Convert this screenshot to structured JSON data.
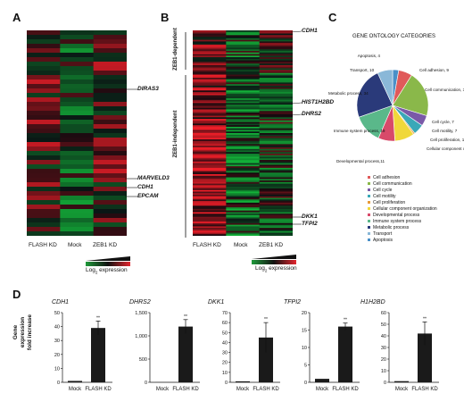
{
  "panels": {
    "a": "A",
    "b": "B",
    "c": "C",
    "d": "D"
  },
  "heatmap_a": {
    "genes": [
      "DIRAS3",
      "MARVELD3",
      "CDH1",
      "EPCAM"
    ],
    "columns": [
      "FLASH KD",
      "Mock",
      "ZEB1 KD"
    ],
    "scale_label_prefix": "Log",
    "scale_label_sub": "2",
    "scale_label_suffix": " expression"
  },
  "heatmap_b": {
    "genes": [
      "CDH1",
      "HIST1H2BD",
      "DHRS2",
      "DKK1",
      "TFPI2"
    ],
    "columns": [
      "FLASH KD",
      "Mock",
      "ZEB1 KD"
    ],
    "groups": [
      "ZEB1-dependent",
      "ZEB1-independent"
    ],
    "scale_label_prefix": "Log",
    "scale_label_sub": "2",
    "scale_label_suffix": " expression"
  },
  "ontology": {
    "title": "GENE ONTOLOGY CATEGORIES",
    "slices": [
      {
        "label": "Apoptosis, 4",
        "color": "#4a90c8"
      },
      {
        "label": "Cell adhesion, 9",
        "color": "#e05a5a"
      },
      {
        "label": "Cell communication, 30",
        "color": "#8ab84a"
      },
      {
        "label": "Cell cycle, 7",
        "color": "#7a5aa8"
      },
      {
        "label": "Cell motility, 7",
        "color": "#3aa8b8"
      },
      {
        "label": "Cell proliferation, 1",
        "color": "#e89a3a"
      },
      {
        "label": "Cellular component organization, 13",
        "color": "#f0d83a"
      },
      {
        "label": "Developmental process,11",
        "color": "#d84a6a"
      },
      {
        "label": "Immune system process, 19",
        "color": "#5ab88a"
      },
      {
        "label": "Metabolic process, 34",
        "color": "#2a3a7a"
      },
      {
        "label": "Transport, 10",
        "color": "#8ab8d8"
      }
    ],
    "legend": [
      {
        "label": "Cell adhesion",
        "color": "#e05a5a"
      },
      {
        "label": "Cell communication",
        "color": "#8ab84a"
      },
      {
        "label": "Cell cycle",
        "color": "#7a5aa8"
      },
      {
        "label": "Cell motility",
        "color": "#3aa8b8"
      },
      {
        "label": "Cell proliferation",
        "color": "#e89a3a"
      },
      {
        "label": "Cellular component organization",
        "color": "#f0d83a"
      },
      {
        "label": "Developmental process",
        "color": "#d84a6a"
      },
      {
        "label": "Immune system process",
        "color": "#5ab88a"
      },
      {
        "label": "Metabolic process",
        "color": "#2a3a7a"
      },
      {
        "label": "Transport",
        "color": "#8ab8d8"
      },
      {
        "label": "Apoptosis",
        "color": "#4a90c8"
      }
    ]
  },
  "chart_data": [
    {
      "type": "pie",
      "title": "GENE ONTOLOGY CATEGORIES",
      "categories": [
        "Apoptosis",
        "Cell adhesion",
        "Cell communication",
        "Cell cycle",
        "Cell motility",
        "Cell proliferation",
        "Cellular component organization",
        "Developmental process",
        "Immune system process",
        "Metabolic process",
        "Transport"
      ],
      "values": [
        4,
        9,
        30,
        7,
        7,
        1,
        13,
        11,
        19,
        34,
        10
      ]
    },
    {
      "type": "bar",
      "title": "CDH1",
      "categories": [
        "Mock",
        "FLASH KD"
      ],
      "values": [
        1,
        39
      ],
      "errors": [
        0,
        5
      ],
      "ylim": [
        0,
        50
      ],
      "yticks": [
        "0",
        "10",
        "20",
        "30",
        "40",
        "50"
      ],
      "ylabel": "Gene expression fold increase",
      "significance": [
        "",
        "**"
      ]
    },
    {
      "type": "bar",
      "title": "DHRS2",
      "categories": [
        "Mock",
        "FLASH KD"
      ],
      "values": [
        1,
        1200
      ],
      "errors": [
        0,
        150
      ],
      "ylim": [
        0,
        1500
      ],
      "yticks": [
        "0",
        "500",
        "1,000",
        "1,500"
      ],
      "significance": [
        "",
        "**"
      ]
    },
    {
      "type": "bar",
      "title": "DKK1",
      "categories": [
        "Mock",
        "FLASH KD"
      ],
      "values": [
        1,
        45
      ],
      "errors": [
        0,
        15
      ],
      "ylim": [
        0,
        70
      ],
      "yticks": [
        "0",
        "10",
        "20",
        "30",
        "40",
        "50",
        "60",
        "70"
      ],
      "significance": [
        "",
        "**"
      ]
    },
    {
      "type": "bar",
      "title": "TFPI2",
      "categories": [
        "Mock",
        "FLASH KD"
      ],
      "values": [
        1,
        16
      ],
      "errors": [
        0,
        1
      ],
      "ylim": [
        0,
        20
      ],
      "yticks": [
        "0",
        "5",
        "10",
        "15",
        "20"
      ],
      "significance": [
        "",
        "**"
      ]
    },
    {
      "type": "bar",
      "title": "H1H2BD",
      "categories": [
        "Mock",
        "FLASH KD"
      ],
      "values": [
        1,
        42
      ],
      "errors": [
        0,
        10
      ],
      "ylim": [
        0,
        60
      ],
      "yticks": [
        "0",
        "10",
        "20",
        "30",
        "40",
        "50",
        "60"
      ],
      "significance": [
        "",
        "**"
      ]
    }
  ]
}
